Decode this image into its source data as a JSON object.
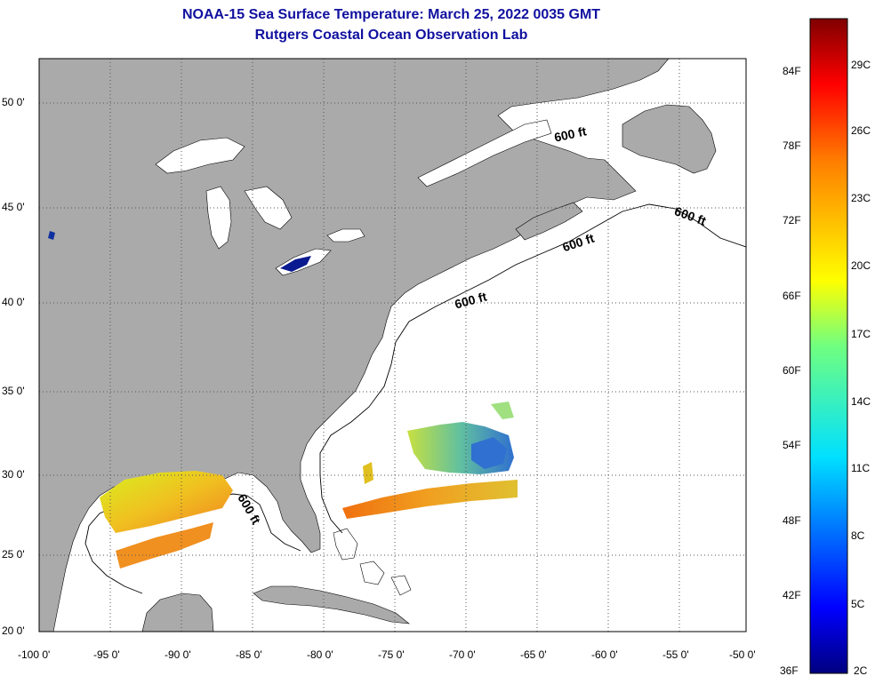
{
  "title_line1": "NOAA-15 Sea Surface Temperature:  March 25, 2022 0035 GMT",
  "title_line2": "Rutgers Coastal Ocean Observation Lab",
  "lon_ticks": [
    "-100 0'",
    "-95 0'",
    "-90 0'",
    "-85 0'",
    "-80 0'",
    "-75 0'",
    "-70 0'",
    "-65 0'",
    "-60 0'",
    "-55 0'",
    "-50 0'"
  ],
  "lat_ticks": [
    "50 0'",
    "45 0'",
    "40 0'",
    "35 0'",
    "30 0'",
    "25 0'",
    "20 0'"
  ],
  "contour_labels": [
    "600 ft",
    "600 ft",
    "600 ft",
    "600 ft",
    "600 ft"
  ],
  "colorbar": {
    "fahrenheit": [
      "84F",
      "78F",
      "72F",
      "66F",
      "60F",
      "54F",
      "48F",
      "42F",
      "36F"
    ],
    "celsius": [
      "29C",
      "26C",
      "23C",
      "20C",
      "17C",
      "14C",
      "11C",
      "8C",
      "5C",
      "2C"
    ]
  },
  "colors": {
    "land": "#aaaaaa",
    "ocean": "#ffffff",
    "title": "#1010a0",
    "grid": "#555555"
  }
}
